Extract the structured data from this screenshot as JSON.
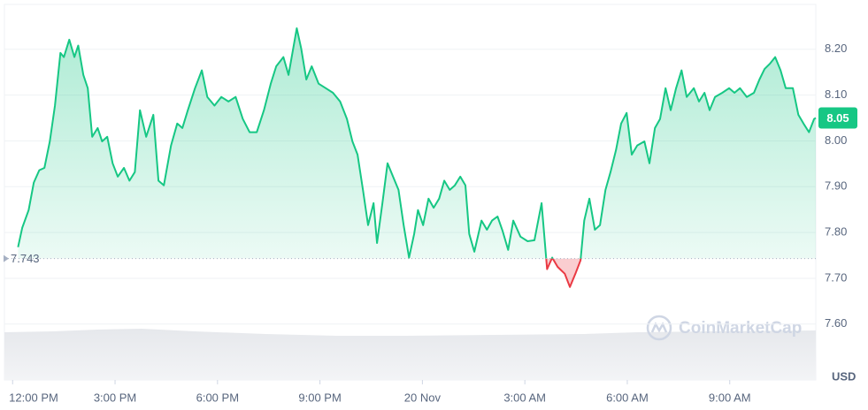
{
  "chart_data": {
    "type": "line",
    "x": [
      0.16,
      0.28,
      0.47,
      0.62,
      0.78,
      0.93,
      1.09,
      1.24,
      1.4,
      1.5,
      1.66,
      1.81,
      1.92,
      2.07,
      2.2,
      2.33,
      2.49,
      2.62,
      2.77,
      2.93,
      3.08,
      3.26,
      3.42,
      3.58,
      3.73,
      3.91,
      4.12,
      4.27,
      4.43,
      4.64,
      4.82,
      4.97,
      5.13,
      5.34,
      5.54,
      5.7,
      5.91,
      6.11,
      6.32,
      6.53,
      6.74,
      6.94,
      7.15,
      7.36,
      7.56,
      7.72,
      7.93,
      8.08,
      8.32,
      8.45,
      8.6,
      8.76,
      8.96,
      9.17,
      9.38,
      9.59,
      9.79,
      9.95,
      10.1,
      10.26,
      10.41,
      10.57,
      10.67,
      10.83,
      10.98,
      11.14,
      11.3,
      11.45,
      11.61,
      11.76,
      11.87,
      12.02,
      12.18,
      12.33,
      12.49,
      12.64,
      12.8,
      12.95,
      13.11,
      13.26,
      13.37,
      13.52,
      13.73,
      13.89,
      14.04,
      14.2,
      14.35,
      14.51,
      14.66,
      14.87,
      15.08,
      15.28,
      15.49,
      15.65,
      15.8,
      15.96,
      16.17,
      16.32,
      16.48,
      16.63,
      16.74,
      16.89,
      17.05,
      17.2,
      17.36,
      17.51,
      17.67,
      17.82,
      17.98,
      18.13,
      18.29,
      18.5,
      18.65,
      18.81,
      18.96,
      19.12,
      19.27,
      19.43,
      19.59,
      19.74,
      19.95,
      20.1,
      20.26,
      20.41,
      20.57,
      20.78,
      20.98,
      21.14,
      21.3,
      21.5,
      21.71,
      21.87,
      22.02,
      22.18,
      22.33,
      22.49,
      22.64,
      22.85,
      23.01,
      23.16,
      23.32,
      23.47,
      23.52
    ],
    "values": [
      7.768,
      7.81,
      7.849,
      7.909,
      7.936,
      7.941,
      7.999,
      8.077,
      8.192,
      8.183,
      8.221,
      8.183,
      8.208,
      8.144,
      8.115,
      8.009,
      8.028,
      7.999,
      8.009,
      7.951,
      7.922,
      7.941,
      7.913,
      7.932,
      8.067,
      8.009,
      8.057,
      7.913,
      7.903,
      7.99,
      8.038,
      8.028,
      8.067,
      8.115,
      8.154,
      8.096,
      8.077,
      8.096,
      8.086,
      8.096,
      8.048,
      8.019,
      8.019,
      8.067,
      8.125,
      8.163,
      8.183,
      8.144,
      8.246,
      8.202,
      8.134,
      8.163,
      8.125,
      8.115,
      8.105,
      8.086,
      8.048,
      7.999,
      7.97,
      7.893,
      7.816,
      7.864,
      7.777,
      7.864,
      7.951,
      7.922,
      7.893,
      7.816,
      7.745,
      7.797,
      7.849,
      7.816,
      7.874,
      7.854,
      7.874,
      7.913,
      7.893,
      7.903,
      7.922,
      7.903,
      7.797,
      7.758,
      7.826,
      7.806,
      7.826,
      7.835,
      7.803,
      7.762,
      7.826,
      7.791,
      7.781,
      7.783,
      7.864,
      7.72,
      7.745,
      7.725,
      7.71,
      7.681,
      7.71,
      7.739,
      7.826,
      7.874,
      7.806,
      7.816,
      7.893,
      7.932,
      7.98,
      8.038,
      8.061,
      7.97,
      7.99,
      7.999,
      7.951,
      8.028,
      8.048,
      8.115,
      8.067,
      8.115,
      8.154,
      8.096,
      8.115,
      8.086,
      8.105,
      8.067,
      8.096,
      8.105,
      8.115,
      8.105,
      8.115,
      8.096,
      8.105,
      8.134,
      8.157,
      8.169,
      8.183,
      8.154,
      8.115,
      8.115,
      8.057,
      8.038,
      8.019,
      8.048,
      8.05
    ],
    "color": "#16c784",
    "negative_color": "#ea3943",
    "baseline": 7.743,
    "current_value": 8.05,
    "xlim": [
      -0.24,
      23.52
    ],
    "xticks": [
      {
        "value": 0,
        "label": "12:00 PM"
      },
      {
        "value": 3,
        "label": "3:00 PM"
      },
      {
        "value": 6,
        "label": "6:00 PM"
      },
      {
        "value": 9,
        "label": "9:00 PM"
      },
      {
        "value": 12,
        "label": "20 Nov"
      },
      {
        "value": 15,
        "label": "3:00 AM"
      },
      {
        "value": 18,
        "label": "6:00 AM"
      },
      {
        "value": 21,
        "label": "9:00 AM"
      }
    ],
    "ylim": [
      7.478,
      8.298
    ],
    "yticks": [
      {
        "value": 8.2,
        "label": "8.20"
      },
      {
        "value": 8.1,
        "label": "8.10"
      },
      {
        "value": 8.0,
        "label": "8.00"
      },
      {
        "value": 7.9,
        "label": "7.90"
      },
      {
        "value": 7.8,
        "label": "7.80"
      },
      {
        "value": 7.7,
        "label": "7.70"
      },
      {
        "value": 7.6,
        "label": "7.60"
      }
    ],
    "y_axis_label": "USD",
    "watermark": "CoinMarketCap",
    "grid": true
  }
}
